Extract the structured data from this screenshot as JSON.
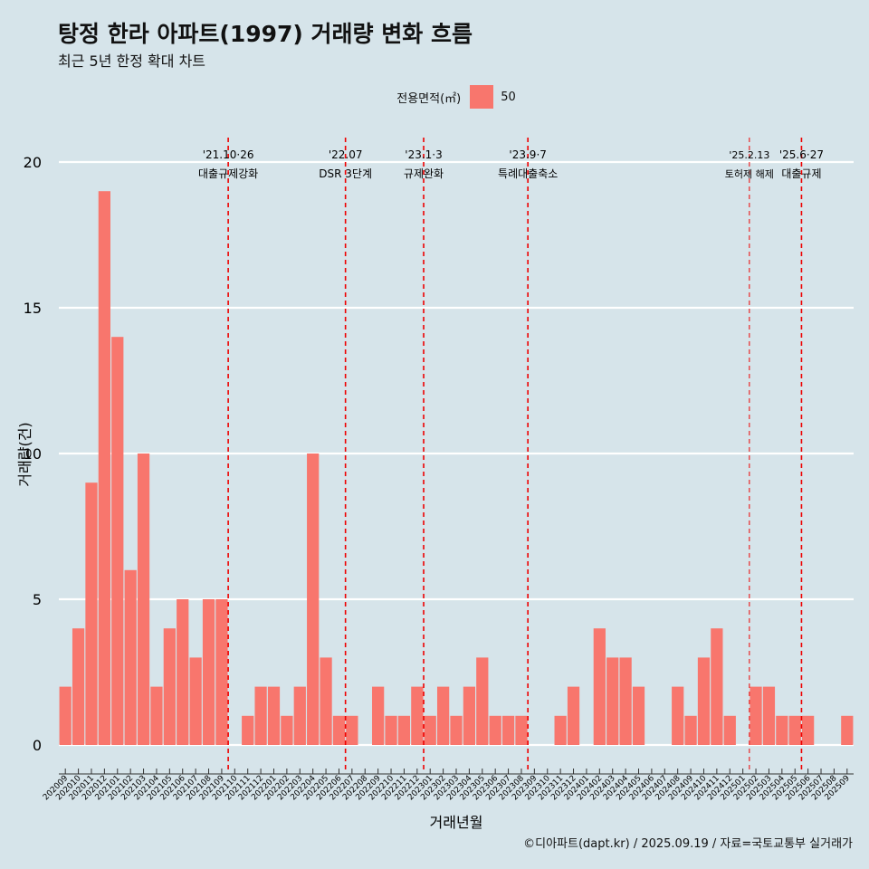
{
  "header": {
    "title": "탕정 한라 아파트(1997) 거래량 변화 흐름",
    "subtitle": "최근 5년 한정 확대 차트"
  },
  "legend": {
    "title": "전용면적(㎡)",
    "items": [
      {
        "label": "50",
        "color": "#f8766d"
      }
    ]
  },
  "caption": "©디아파트(dapt.kr) / 2025.09.19 / 자료=국토교통부 실거래가",
  "chart_data": {
    "type": "bar",
    "xlabel": "거래년월",
    "ylabel": "거래량(건)",
    "ylim": [
      0,
      20
    ],
    "yticks": [
      0,
      5,
      10,
      15,
      20
    ],
    "grid": true,
    "legend_position": "top",
    "categories": [
      "202009",
      "202010",
      "202011",
      "202012",
      "202101",
      "202102",
      "202103",
      "202104",
      "202105",
      "202106",
      "202107",
      "202108",
      "202109",
      "202110",
      "202111",
      "202112",
      "202201",
      "202202",
      "202203",
      "202204",
      "202205",
      "202206",
      "202207",
      "202208",
      "202209",
      "202210",
      "202211",
      "202212",
      "202301",
      "202302",
      "202303",
      "202304",
      "202305",
      "202306",
      "202307",
      "202308",
      "202309",
      "202310",
      "202311",
      "202312",
      "202401",
      "202402",
      "202403",
      "202404",
      "202405",
      "202406",
      "202407",
      "202408",
      "202409",
      "202410",
      "202411",
      "202412",
      "202501",
      "202502",
      "202503",
      "202504",
      "202505",
      "202506",
      "202507",
      "202508",
      "202509"
    ],
    "series": [
      {
        "name": "50",
        "color": "#f8766d",
        "values": [
          2,
          4,
          9,
          19,
          14,
          6,
          10,
          2,
          4,
          5,
          3,
          5,
          5,
          0,
          1,
          2,
          2,
          1,
          2,
          10,
          3,
          1,
          1,
          0,
          2,
          1,
          1,
          2,
          1,
          2,
          1,
          2,
          3,
          1,
          1,
          1,
          0,
          0,
          1,
          2,
          0,
          4,
          3,
          3,
          2,
          0,
          0,
          2,
          1,
          3,
          4,
          1,
          0,
          2,
          2,
          1,
          1,
          1,
          0,
          0,
          1
        ]
      }
    ],
    "annotations": [
      {
        "at": 13.0,
        "label1": "'21.10·26",
        "label2": "대출규제강화",
        "style": "dashed"
      },
      {
        "at": 22.0,
        "label1": "'22.07",
        "label2": "DSR 3단계",
        "style": "dashed"
      },
      {
        "at": 28.0,
        "label1": "'23.1·3",
        "label2": "규제완화",
        "style": "dashed"
      },
      {
        "at": 36.0,
        "label1": "'23.9·7",
        "label2": "특례대출축소",
        "style": "dashed"
      },
      {
        "at": 53.0,
        "label1": "'25.2.13",
        "label2": "토허제 해제",
        "style": "thin"
      },
      {
        "at": 57.0,
        "label1": "'25.6·27",
        "label2": "대출규제",
        "style": "dashed"
      }
    ]
  }
}
